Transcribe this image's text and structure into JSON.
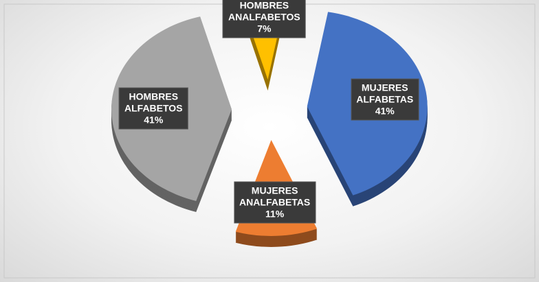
{
  "chart_data": {
    "type": "pie",
    "categories": [
      "MUJERES ALFABETAS",
      "MUJERES ANALFABETAS",
      "HOMBRES ALFABETOS",
      "HOMBRES ANALFABETOS"
    ],
    "values": [
      41,
      11,
      41,
      7
    ],
    "value_labels": [
      "41%",
      "11%",
      "41%",
      "7%"
    ],
    "colors": [
      "#4472c4",
      "#ed7d31",
      "#a5a5a5",
      "#ffc000"
    ]
  }
}
